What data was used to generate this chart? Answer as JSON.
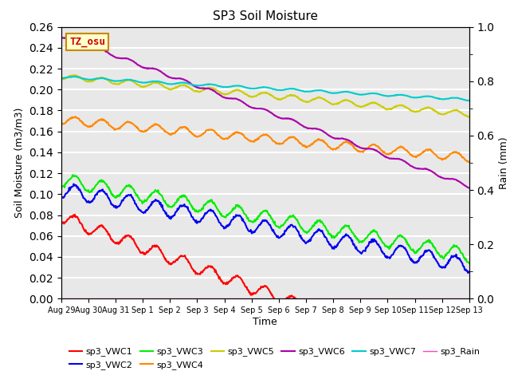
{
  "title": "SP3 Soil Moisture",
  "xlabel": "Time",
  "ylabel_left": "Soil Moisture (m3/m3)",
  "ylabel_right": "Rain (mm)",
  "ylim_left": [
    0.0,
    0.26
  ],
  "ylim_right": [
    0.0,
    1.0
  ],
  "num_days": 15,
  "pts_per_day": 48,
  "bg_color": "#e8e8e8",
  "grid_color": "white",
  "series_order": [
    "sp3_VWC1",
    "sp3_VWC2",
    "sp3_VWC3",
    "sp3_VWC4",
    "sp3_VWC5",
    "sp3_VWC6",
    "sp3_VWC7",
    "sp3_Rain"
  ],
  "series": {
    "sp3_VWC1": {
      "color": "#ff0000",
      "base": 0.072,
      "amp": 0.012,
      "freq": 1.0,
      "trend": -0.0002,
      "lw": 1.5
    },
    "sp3_VWC2": {
      "color": "#0000ee",
      "base": 0.097,
      "amp": 0.014,
      "freq": 1.0,
      "trend": -0.0001,
      "lw": 1.5
    },
    "sp3_VWC3": {
      "color": "#00ee00",
      "base": 0.107,
      "amp": 0.013,
      "freq": 1.0,
      "trend": -0.0001,
      "lw": 1.5
    },
    "sp3_VWC4": {
      "color": "#ff8800",
      "base": 0.167,
      "amp": 0.008,
      "freq": 1.0,
      "trend": -5e-05,
      "lw": 1.5
    },
    "sp3_VWC5": {
      "color": "#cccc00",
      "base": 0.21,
      "amp": 0.005,
      "freq": 1.0,
      "trend": -5e-05,
      "lw": 1.5
    },
    "sp3_VWC6": {
      "color": "#aa00aa",
      "base": 0.25,
      "amp": 0.003,
      "freq": 1.0,
      "trend": -0.0002,
      "lw": 1.5
    },
    "sp3_VWC7": {
      "color": "#00cccc",
      "base": 0.211,
      "amp": 0.002,
      "freq": 1.0,
      "trend": -3e-05,
      "lw": 1.5
    },
    "sp3_Rain": {
      "color": "#ff44cc",
      "base": 0.0005,
      "amp": 0.0,
      "freq": 0.0,
      "trend": 0.0,
      "lw": 1.0
    }
  },
  "xtick_labels": [
    "Aug 29",
    "Aug 30",
    "Aug 31",
    "Sep 1",
    "Sep 2",
    "Sep 3",
    "Sep 4",
    "Sep 5",
    "Sep 6",
    "Sep 7",
    "Sep 8",
    "Sep 9",
    "Sep 10",
    "Sep 11",
    "Sep 12",
    "Sep 13"
  ],
  "annotation_text": "TZ_osu",
  "annotation_bg": "#ffffcc",
  "annotation_edge": "#cc8800",
  "annotation_color": "#cc0000"
}
